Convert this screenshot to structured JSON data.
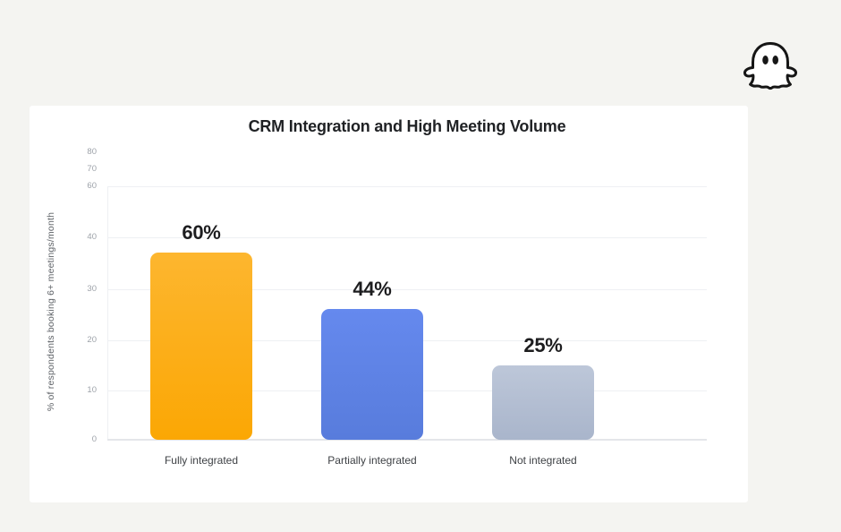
{
  "page": {
    "background": "#F4F4F1",
    "card_background": "#FFFFFF"
  },
  "logo": {
    "icon": "ghost-icon"
  },
  "chart_data": {
    "type": "bar",
    "title": "CRM Integration and High Meeting Volume",
    "ylabel": "% of respondents booking 6+ meetings/month",
    "xlabel": "",
    "categories": [
      "Fully integrated",
      "Partially integrated",
      "Not integrated"
    ],
    "values": [
      60,
      44,
      25
    ],
    "value_labels": [
      "60%",
      "44%",
      "25%"
    ],
    "ytick_labels": [
      "80",
      "70",
      "60",
      "40",
      "30",
      "20",
      "10",
      "0"
    ],
    "ylim": [
      0,
      80
    ],
    "grid": true,
    "legend": false,
    "bar_colors": [
      {
        "top": "#FDB62F",
        "bottom": "#FBA704"
      },
      {
        "top": "#6589EE",
        "bottom": "#587CDC"
      },
      {
        "top": "#BDC7D9",
        "bottom": "#A9B5CB"
      }
    ],
    "value_label_color": "#1D1D1F",
    "tick_label_color": "#9DA2A9",
    "category_label_color": "#3E4145",
    "gridline_color": "#EEF0F3"
  }
}
